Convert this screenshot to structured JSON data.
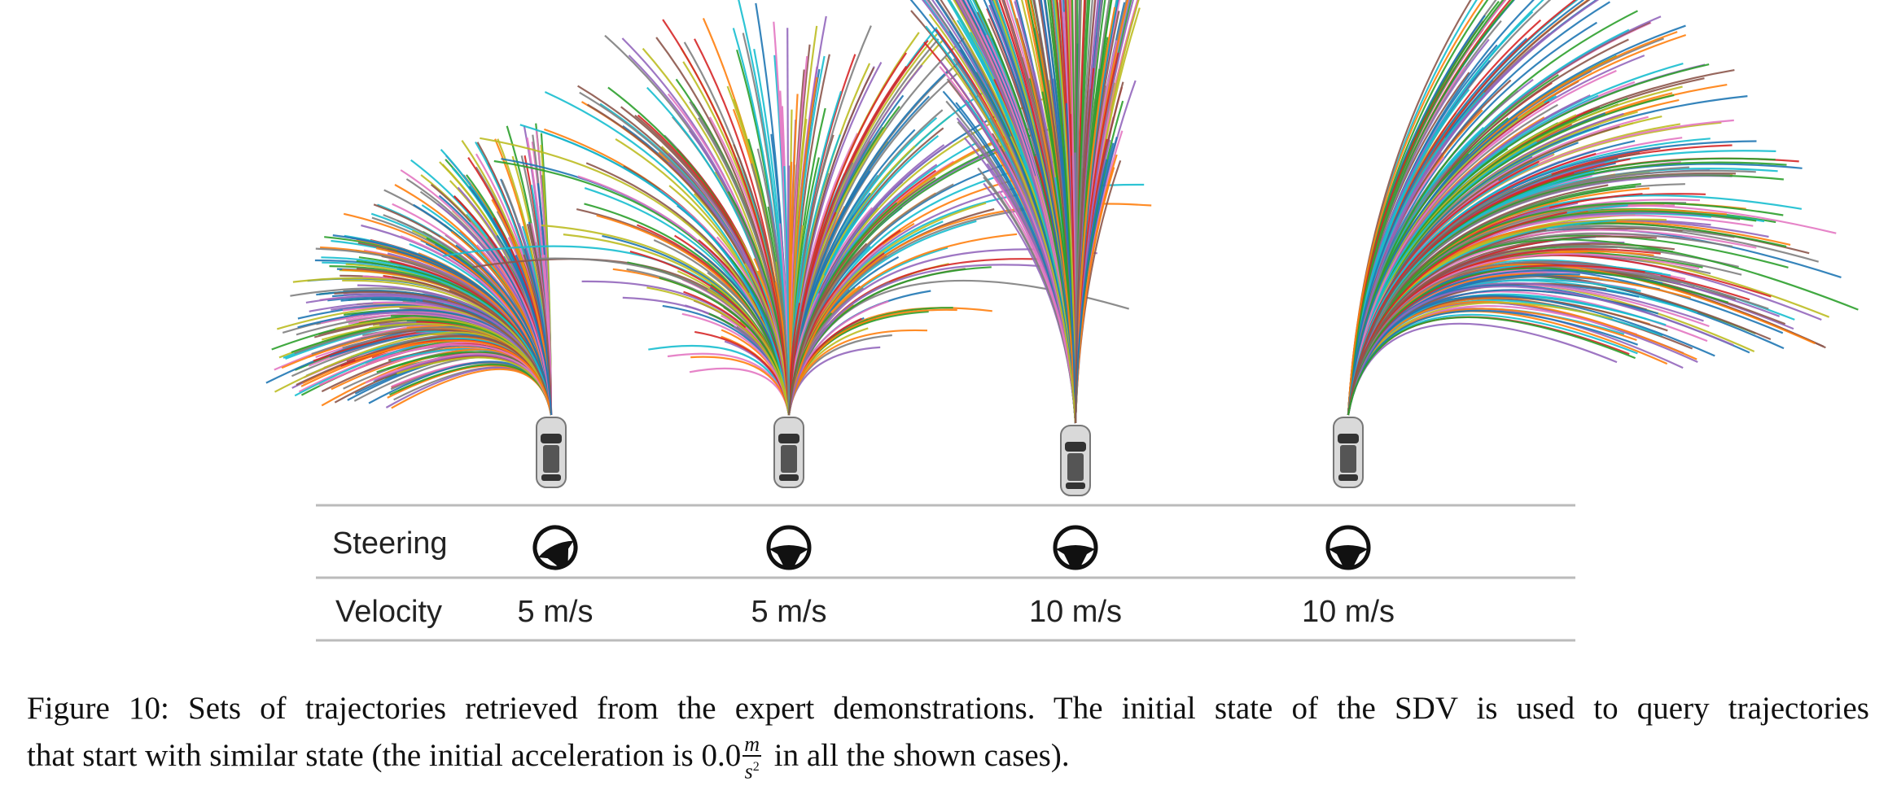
{
  "table": {
    "rows": [
      {
        "label": "Steering"
      },
      {
        "label": "Velocity",
        "cells": [
          "5 m/s",
          "5 m/s",
          "10 m/s",
          "10 m/s"
        ]
      }
    ]
  },
  "caption": {
    "label": "Figure 10:",
    "line_1": "Sets of trajectories retrieved from the expert demonstrations. The initial state of the SDV is used to query trajectories",
    "line_2": "that start with similar state (the initial acceleration is",
    "acceleration": "0.0",
    "unit_numerator": "m",
    "unit_denominator": "s",
    "unit_exponent": "2",
    "line_2_end": "in all the shown cases)."
  }
}
